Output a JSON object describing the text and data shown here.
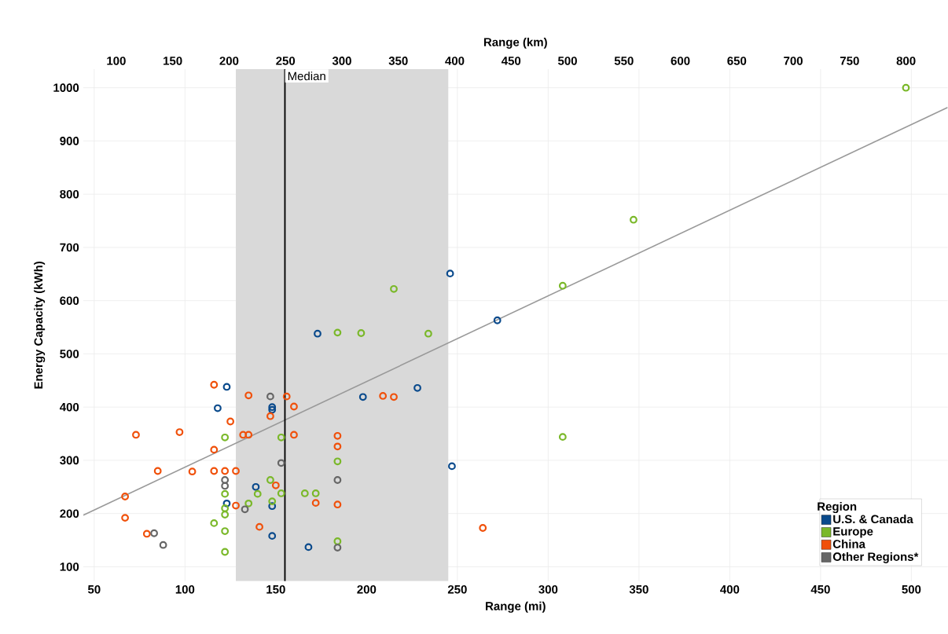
{
  "chart_data": {
    "type": "scatter",
    "xlabel": "Range (mi)",
    "ylabel": "Energy Capacity (kWh)",
    "x2label": "Range (km)",
    "legend_title": "Region",
    "xlim": [
      44,
      520
    ],
    "ylim": [
      73,
      1035
    ],
    "x2lim": [
      70.8,
      836.9
    ],
    "xticks": [
      50,
      100,
      150,
      200,
      250,
      300,
      350,
      400,
      450,
      500
    ],
    "yticks": [
      100,
      200,
      300,
      400,
      500,
      600,
      700,
      800,
      900,
      1000
    ],
    "x2ticks": [
      100,
      150,
      200,
      250,
      300,
      350,
      400,
      450,
      500,
      550,
      600,
      650,
      700,
      750,
      800
    ],
    "grid": true,
    "legend": "bottom right",
    "marker": "circle",
    "bands": [
      {
        "axis": "x",
        "from": 128,
        "to": 245,
        "color": "#d9d9d9"
      }
    ],
    "ref_lines": [
      {
        "axis": "x",
        "value": 155,
        "label": "Median",
        "color": "#000000"
      }
    ],
    "series": [
      {
        "name": "U.S. & Canada",
        "color": "#0a4a8c",
        "x": [
          123,
          118,
          139,
          123,
          173,
          198,
          148,
          148,
          148,
          148,
          168,
          246,
          272,
          228,
          247
        ],
        "values": [
          438,
          398,
          250,
          219,
          538,
          419,
          400,
          395,
          214,
          158,
          137,
          651,
          563,
          436,
          289
        ]
      },
      {
        "name": "Europe",
        "color": "#7ab829",
        "x": [
          122,
          140,
          122,
          135,
          122,
          122,
          116,
          122,
          122,
          184,
          197,
          153,
          184,
          147,
          153,
          166,
          172,
          148,
          184,
          215,
          234,
          497,
          347,
          308,
          308
        ],
        "values": [
          343,
          237,
          237,
          219,
          210,
          198,
          182,
          167,
          128,
          540,
          539,
          343,
          298,
          263,
          238,
          238,
          238,
          223,
          148,
          622,
          538,
          1000,
          752,
          628,
          344
        ]
      },
      {
        "name": "China",
        "color": "#f0500a",
        "x": [
          116,
          135,
          125,
          73,
          97,
          132,
          135,
          116,
          85,
          104,
          116,
          122,
          128,
          128,
          67,
          67,
          141,
          79,
          156,
          160,
          147,
          160,
          184,
          184,
          150,
          172,
          184,
          209,
          215,
          264
        ],
        "values": [
          442,
          422,
          373,
          348,
          353,
          348,
          348,
          320,
          280,
          279,
          280,
          280,
          280,
          215,
          232,
          192,
          175,
          162,
          420,
          401,
          383,
          348,
          346,
          326,
          253,
          220,
          217,
          421,
          419,
          173
        ]
      },
      {
        "name": "Other Regions*",
        "color": "#666666",
        "x": [
          122,
          122,
          133,
          83,
          88,
          147,
          153,
          184,
          184
        ],
        "values": [
          263,
          252,
          208,
          163,
          141,
          420,
          295,
          263,
          136
        ]
      },
      {
        "type": "line",
        "marker": "none",
        "color": "#999999",
        "x": [
          44,
          520
        ],
        "values": [
          197,
          963
        ]
      }
    ]
  }
}
